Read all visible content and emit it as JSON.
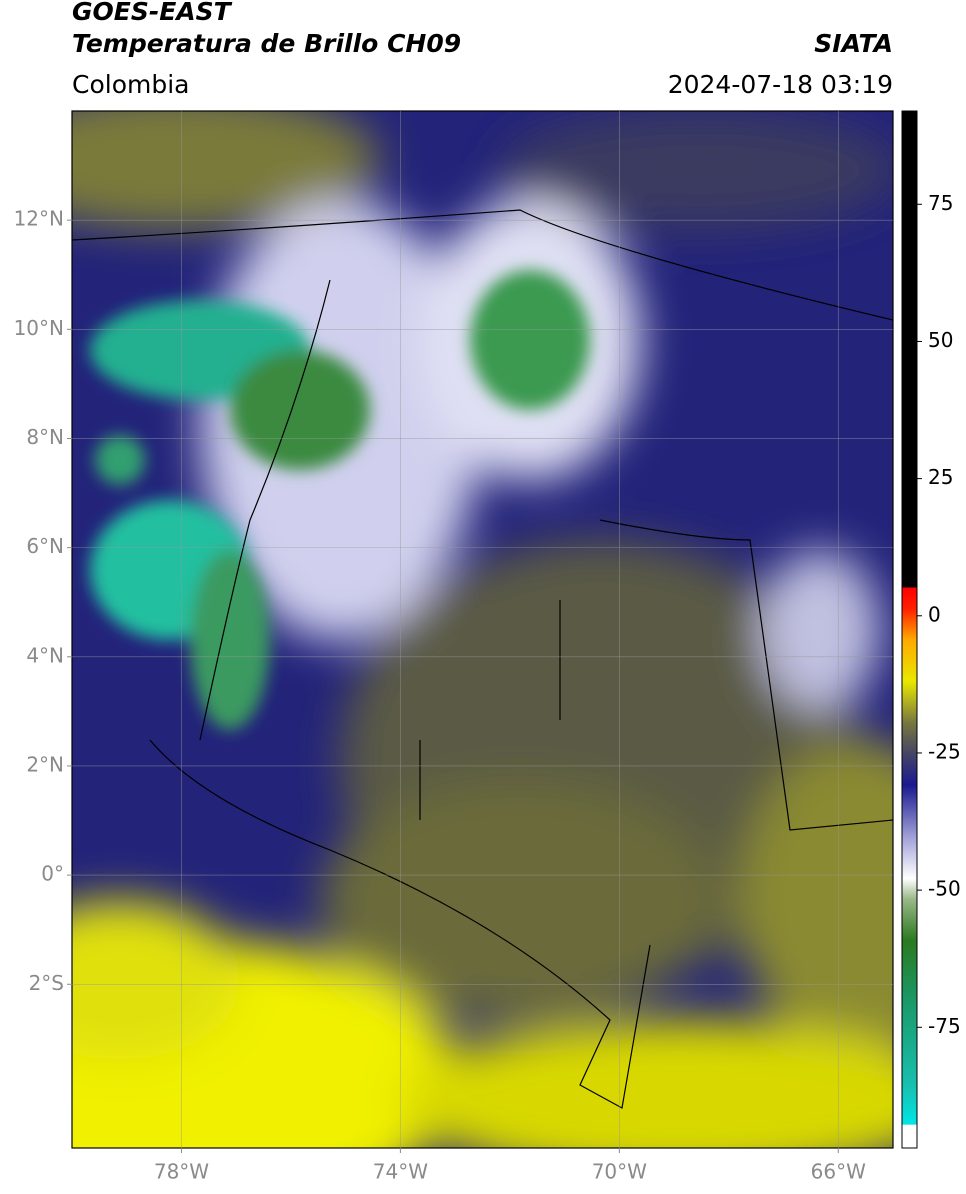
{
  "header": {
    "title": "GOES-EAST",
    "subtitle": "Temperatura de Brillo CH09",
    "region": "Colombia",
    "source": "SIATA",
    "timestamp": "2024-07-18 03:19"
  },
  "map": {
    "xlim": [
      -80,
      -65
    ],
    "ylim": [
      -5,
      14
    ],
    "grid": true,
    "xticks": [
      {
        "value": -78,
        "label": "78°W"
      },
      {
        "value": -74,
        "label": "74°W"
      },
      {
        "value": -70,
        "label": "70°W"
      },
      {
        "value": -66,
        "label": "66°W"
      }
    ],
    "yticks": [
      {
        "value": 12,
        "label": "12°N"
      },
      {
        "value": 10,
        "label": "10°N"
      },
      {
        "value": 8,
        "label": "8°N"
      },
      {
        "value": 6,
        "label": "6°N"
      },
      {
        "value": 4,
        "label": "4°N"
      },
      {
        "value": 2,
        "label": "2°N"
      },
      {
        "value": 0,
        "label": "0°"
      },
      {
        "value": -2,
        "label": "2°S"
      }
    ]
  },
  "colorbar": {
    "lim": [
      -97,
      92
    ],
    "ticks": [
      75,
      50,
      25,
      0,
      -25,
      -50,
      -75
    ]
  }
}
